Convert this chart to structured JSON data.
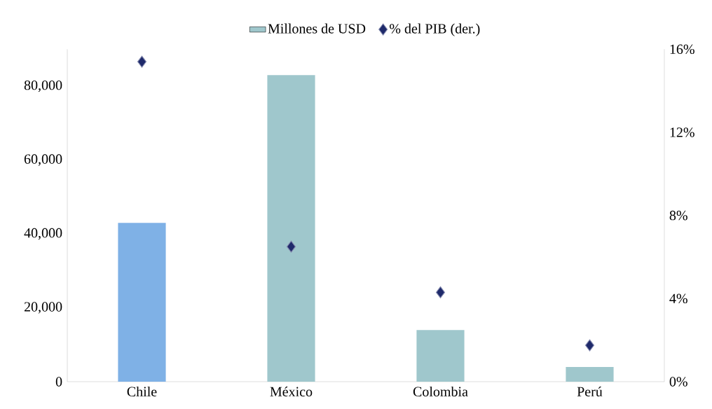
{
  "chart_data": {
    "type": "bar",
    "categories": [
      "Chile",
      "México",
      "Colombia",
      "Perú"
    ],
    "series": [
      {
        "name": "Millones de USD",
        "color": "#9fc7cc",
        "colors": [
          "#7fb1e6",
          "#9fc7cc",
          "#9fc7cc",
          "#9fc7cc"
        ],
        "values": [
          43000,
          83000,
          14000,
          4000
        ]
      },
      {
        "name": "% del PIB (der.)",
        "type": "scatter",
        "axis": "y2",
        "color": "#1f2a6b",
        "marker": "diamond",
        "values": [
          15.4,
          6.5,
          4.3,
          1.75
        ]
      }
    ],
    "ylim": [
      0,
      90000
    ],
    "yticks": [
      0,
      {
        "value": 20000,
        "label": "20,000"
      },
      {
        "value": 40000,
        "label": "40,000"
      },
      {
        "value": 60000,
        "label": "60,000"
      },
      {
        "value": 80000,
        "label": "80,000"
      }
    ],
    "y2lim": [
      0,
      16
    ],
    "y2ticks": [
      {
        "value": 0,
        "label": "0%"
      },
      {
        "value": 4,
        "label": "4%"
      },
      {
        "value": 8,
        "label": "8%"
      },
      {
        "value": 12,
        "label": "12%"
      },
      {
        "value": 16,
        "label": "16%"
      }
    ],
    "grid": false,
    "legend": "top"
  }
}
